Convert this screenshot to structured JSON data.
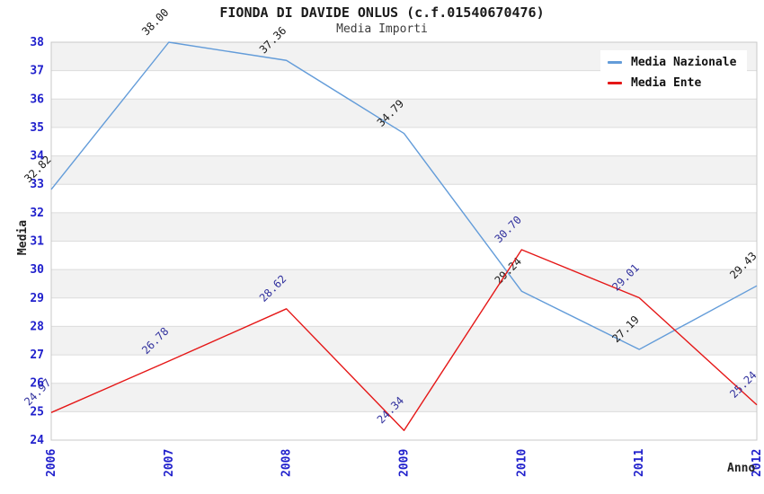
{
  "title": "FIONDA DI DAVIDE ONLUS (c.f.01540670476)",
  "subtitle": "Media Importi",
  "chart_data": {
    "type": "line",
    "x": [
      "2006",
      "2007",
      "2008",
      "2009",
      "2010",
      "2011",
      "2012"
    ],
    "series": [
      {
        "name": "Media Nazionale",
        "color": "#639cd9",
        "label_color": "#1a1a1a",
        "values": [
          32.82,
          38.0,
          37.36,
          34.79,
          29.24,
          27.19,
          29.43
        ]
      },
      {
        "name": "Media Ente",
        "color": "#e51717",
        "label_color": "#32329e",
        "values": [
          24.97,
          26.78,
          28.62,
          24.34,
          30.7,
          29.01,
          25.24
        ]
      }
    ],
    "xlabel": "Anno",
    "ylabel": "Media",
    "ylim": [
      24,
      38
    ],
    "ytick_step": 1,
    "grid": true,
    "legend_position": "top-right",
    "band_colors": [
      "#ffffff",
      "#f2f2f2"
    ],
    "tick_color": "#2020cc",
    "gridline_color": "#dcdcdc",
    "border_color": "#c8c8c8"
  }
}
